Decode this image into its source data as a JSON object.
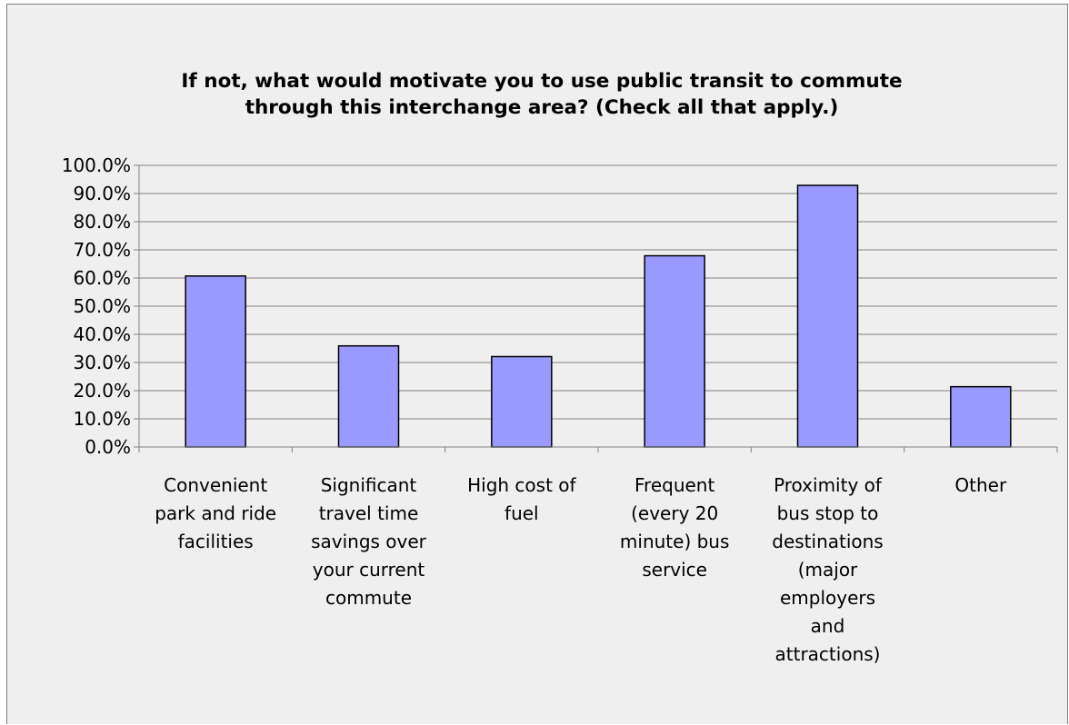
{
  "chart_data": {
    "type": "bar",
    "title_lines": [
      "If not, what would motivate you to use public transit to commute",
      "through this interchange area? (Check all that apply.)"
    ],
    "categories": [
      "Convenient park and ride facilities",
      "Significant travel time savings over your current commute",
      "High cost of fuel",
      "Frequent (every 20 minute) bus service",
      "Proximity of bus stop to destinations (major employers and attractions)",
      "Other"
    ],
    "category_lines": [
      [
        "Convenient",
        "park and ride",
        "facilities"
      ],
      [
        "Significant",
        "travel time",
        "savings over",
        "your current",
        "commute"
      ],
      [
        "High cost of",
        "fuel"
      ],
      [
        "Frequent",
        "(every 20",
        "minute) bus",
        "service"
      ],
      [
        "Proximity of",
        "bus stop to",
        "destinations",
        "(major",
        "employers",
        "and",
        "attractions)"
      ],
      [
        "Other"
      ]
    ],
    "values": [
      60.7,
      35.9,
      32.1,
      67.9,
      92.9,
      21.4
    ],
    "ylim": [
      0,
      100
    ],
    "y_ticks": [
      "0.0%",
      "10.0%",
      "20.0%",
      "30.0%",
      "40.0%",
      "50.0%",
      "60.0%",
      "70.0%",
      "80.0%",
      "90.0%",
      "100.0%"
    ],
    "grid": true,
    "legend": "none",
    "bar_color": "#9999ff",
    "bar_border": "#000000",
    "background": "#efefef"
  }
}
